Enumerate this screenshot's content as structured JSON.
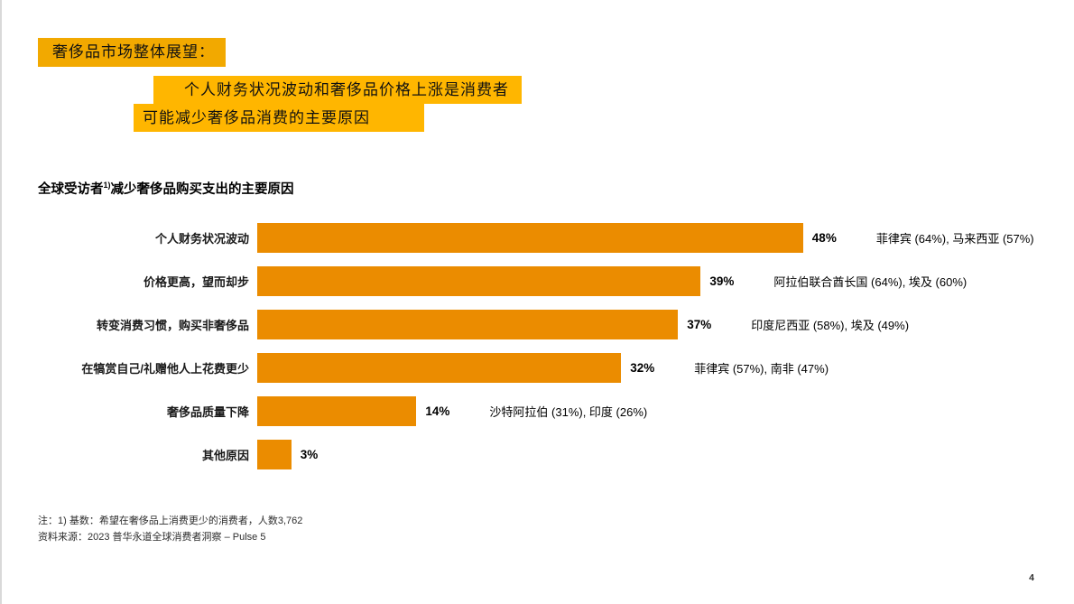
{
  "slide": {
    "title_line1": "奢侈品市场整体展望：",
    "title_line2": "个人财务状况波动和奢侈品价格上涨是消费者",
    "title_line3": "可能减少奢侈品消费的主要原因",
    "page_number": "4"
  },
  "chart_header": {
    "prefix": "全球受访者",
    "superscript": "1)",
    "suffix": "减少奢侈品购买支出的主要原因"
  },
  "chart_data": {
    "type": "bar",
    "orientation": "horizontal",
    "title": "全球受访者1)减少奢侈品购买支出的主要原因",
    "bar_color": "#EB8C00",
    "xlim": [
      0,
      50
    ],
    "grid": false,
    "legend": "none",
    "categories": [
      "个人财务状况波动",
      "价格更高，望而却步",
      "转变消费习惯，购买非奢侈品",
      "在犒赏自己/礼赠他人上花费更少",
      "奢侈品质量下降",
      "其他原因"
    ],
    "values": [
      48,
      39,
      37,
      32,
      14,
      3
    ],
    "value_labels": [
      "48%",
      "39%",
      "37%",
      "32%",
      "14%",
      "3%"
    ],
    "annotations": [
      "菲律宾 (64%), 马来西亚 (57%)",
      "阿拉伯联合酋长国 (64%), 埃及 (60%)",
      "印度尼西亚 (58%), 埃及 (49%)",
      "菲律宾 (57%), 南非 (47%)",
      "沙特阿拉伯 (31%), 印度 (26%)",
      ""
    ]
  },
  "footnotes": {
    "note": "注：1) 基数：希望在奢侈品上消费更少的消费者，人数3,762",
    "source": "资料来源：2023 普华永道全球消费者洞察 – Pulse 5"
  },
  "colors": {
    "bar": "#EB8C00",
    "highlight_orange": "#F2A900",
    "highlight_yellow": "#FFB600"
  }
}
